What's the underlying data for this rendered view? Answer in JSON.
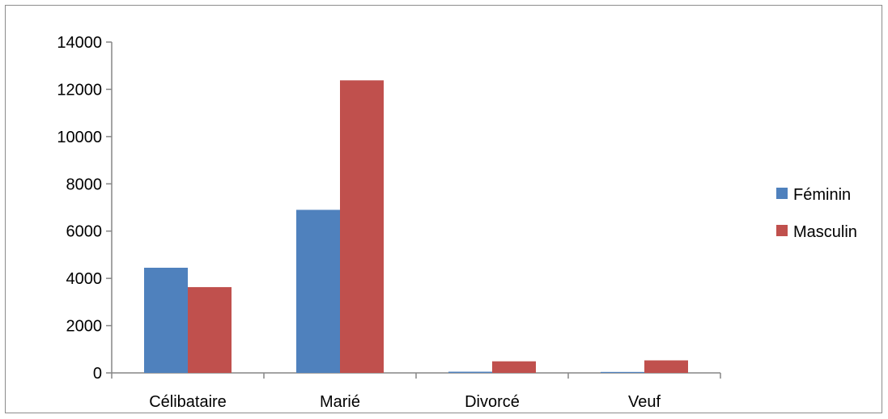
{
  "chart_data": {
    "type": "bar",
    "categories": [
      "Célibataire",
      "Marié",
      "Divorcé",
      "Veuf"
    ],
    "series": [
      {
        "name": "Féminin",
        "color": "#4F81BD",
        "values": [
          4450,
          6900,
          50,
          40
        ]
      },
      {
        "name": "Masculin",
        "color": "#C0504D",
        "values": [
          3630,
          12380,
          490,
          530
        ]
      }
    ],
    "ylim": [
      0,
      14000
    ],
    "yticks": [
      0,
      2000,
      4000,
      6000,
      8000,
      10000,
      12000,
      14000
    ],
    "grid": false,
    "legend_position": "right",
    "title": "",
    "xlabel": "",
    "ylabel": ""
  }
}
